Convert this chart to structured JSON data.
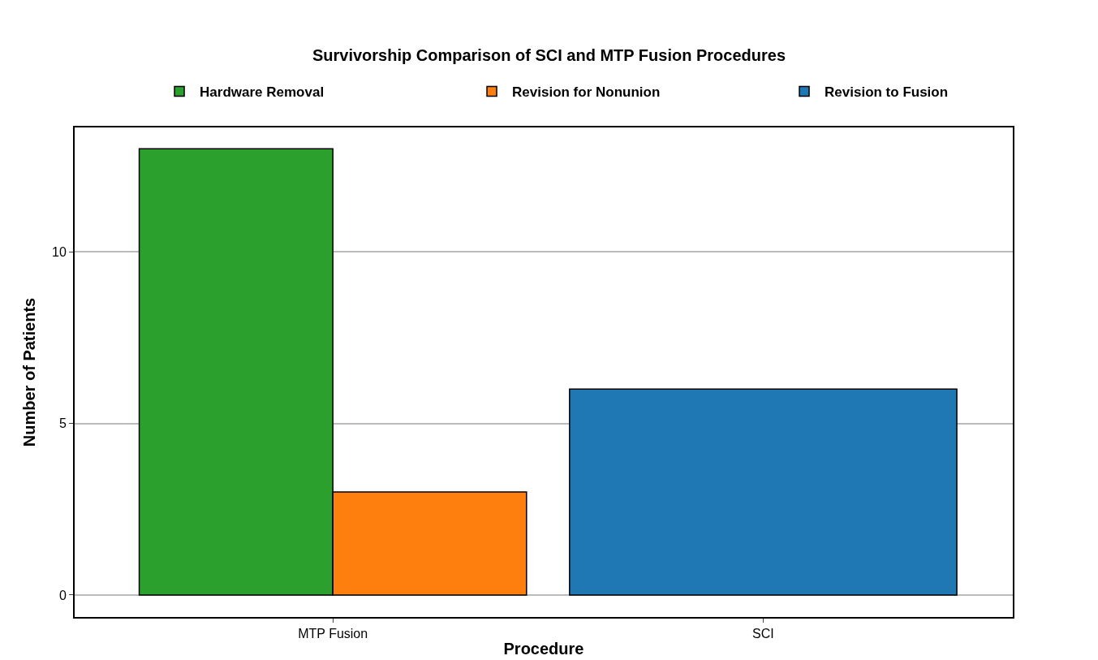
{
  "chart_data": {
    "type": "bar",
    "title": "Survivorship Comparison of SCI and MTP Fusion Procedures",
    "xlabel": "Procedure",
    "ylabel": "Number of Patients",
    "categories": [
      "MTP Fusion",
      "SCI"
    ],
    "series": [
      {
        "name": "Hardware Removal",
        "color": "#2ca02c",
        "values": [
          13,
          null
        ]
      },
      {
        "name": "Revision for Nonunion",
        "color": "#ff7f0e",
        "values": [
          3,
          null
        ]
      },
      {
        "name": "Revision to Fusion",
        "color": "#1f77b4",
        "values": [
          null,
          6
        ]
      }
    ],
    "ylim": [
      -0.64,
      13.62
    ],
    "yticks": [
      0,
      5,
      10
    ],
    "grid": "y",
    "legend": "top"
  }
}
